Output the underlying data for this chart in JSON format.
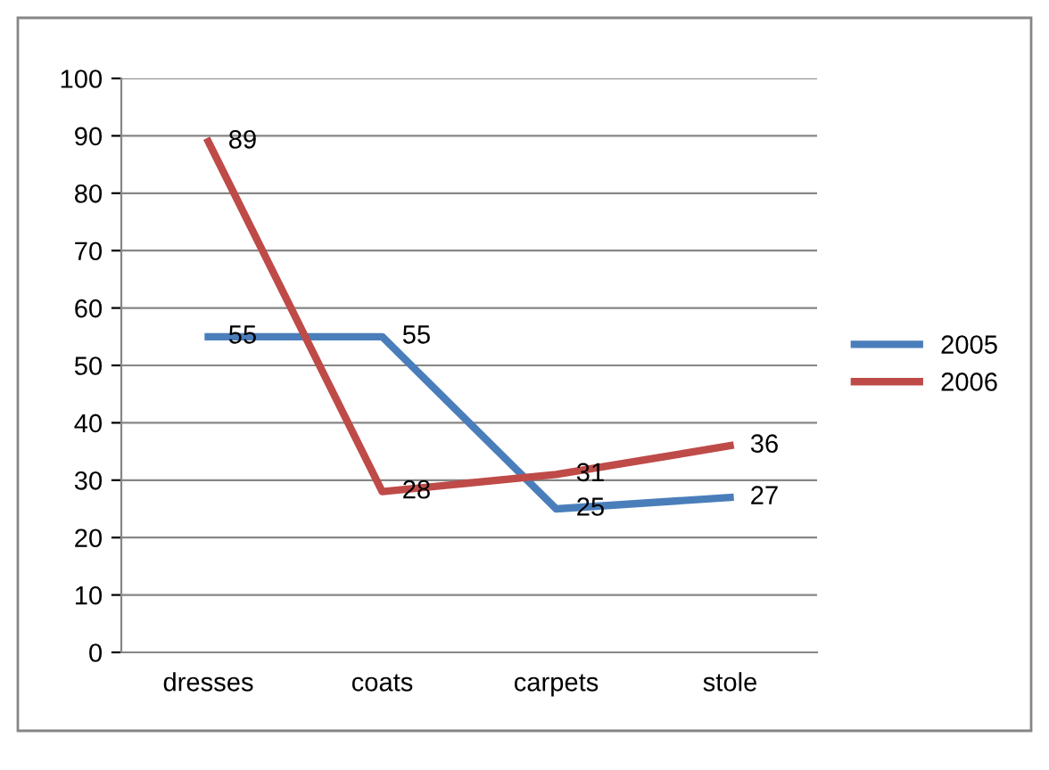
{
  "chart_data": {
    "type": "line",
    "categories": [
      "dresses",
      "coats",
      "carpets",
      "stole"
    ],
    "series": [
      {
        "name": "2005",
        "color": "#4a7ebb",
        "values": [
          55,
          55,
          25,
          27
        ]
      },
      {
        "name": "2006",
        "color": "#be4b48",
        "values": [
          89,
          28,
          31,
          36
        ]
      }
    ],
    "ylim": [
      0,
      100
    ],
    "yticks": [
      0,
      10,
      20,
      30,
      40,
      50,
      60,
      70,
      80,
      90,
      100
    ],
    "grid": "y",
    "legend": "right",
    "marker": "none",
    "line_style": "solid",
    "data_labels": true
  }
}
